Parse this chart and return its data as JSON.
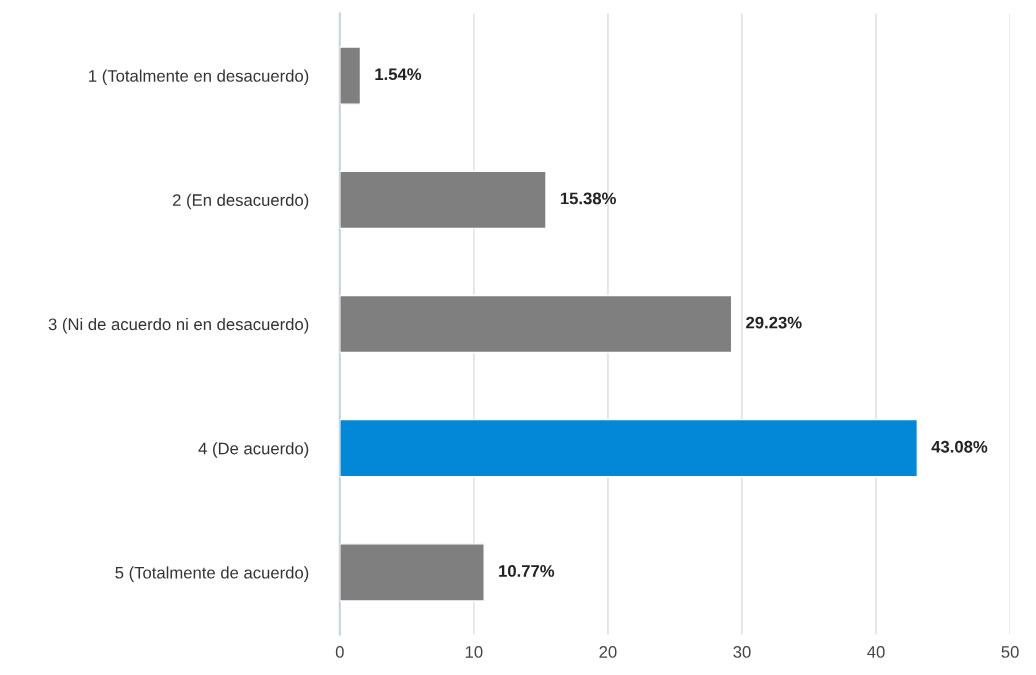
{
  "chart_data": {
    "type": "bar",
    "orientation": "horizontal",
    "categories": [
      "1 (Totalmente en desacuerdo)",
      "2 (En desacuerdo)",
      "3 (Ni de acuerdo ni en desacuerdo)",
      "4 (De acuerdo)",
      "5 (Totalmente de acuerdo)"
    ],
    "values": [
      1.54,
      15.38,
      29.23,
      43.08,
      10.77
    ],
    "colors": [
      "#7f7f7f",
      "#7f7f7f",
      "#7f7f7f",
      "#0288d6",
      "#7f7f7f"
    ],
    "value_labels": [
      "1.54%",
      "15.38%",
      "29.23%",
      "43.08%",
      "10.77%"
    ],
    "xlim": [
      0,
      50
    ],
    "xticks": [
      0,
      10,
      20,
      30,
      40,
      50
    ],
    "grid": "x"
  }
}
